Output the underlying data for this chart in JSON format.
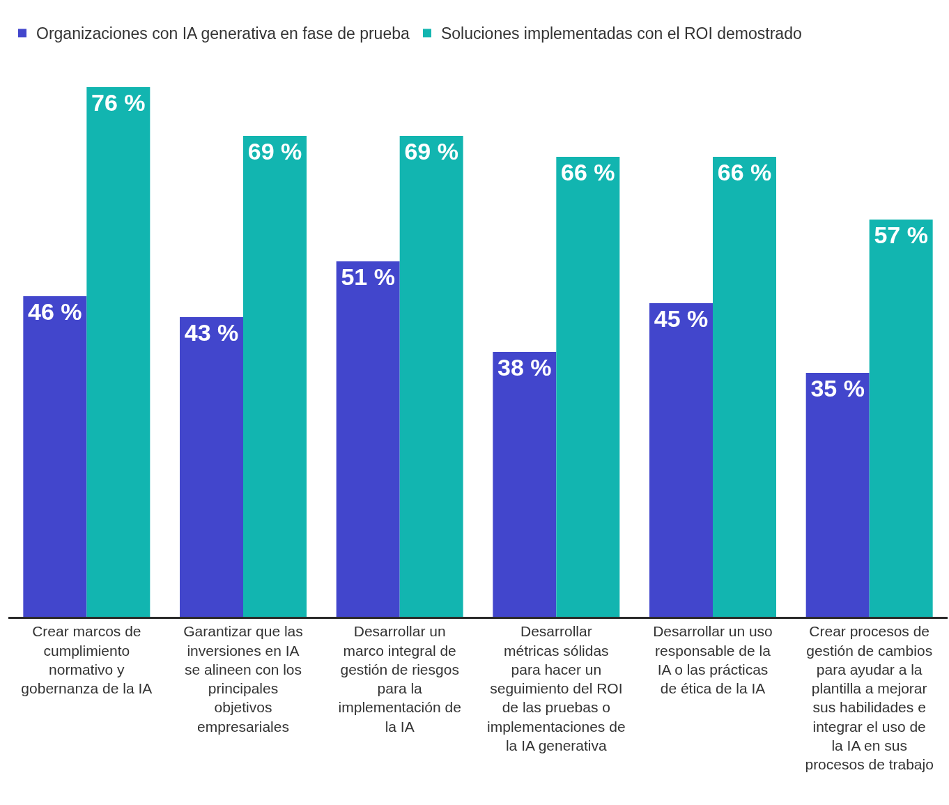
{
  "chart_data": {
    "type": "bar",
    "categories": [
      "Crear marcos de cumplimiento normativo y gobernanza de la IA",
      "Garantizar que las inversiones en IA se alineen con los principales objetivos empresariales",
      "Desarrollar un marco integral de gestión de riesgos para la implementación de la IA",
      "Desarrollar métricas sólidas para hacer un seguimiento del ROI de las pruebas o implementaciones de la IA generativa",
      "Desarrollar un uso responsable de la IA o las prácticas de ética de la IA",
      "Crear procesos de gestión de cambios para ayudar a la plantilla a mejorar sus habilidades e integrar el uso de la IA en sus procesos de trabajo"
    ],
    "series": [
      {
        "name": "Organizaciones con IA generativa en fase de prueba",
        "color": "#4246cc",
        "values": [
          46,
          43,
          51,
          38,
          45,
          35
        ],
        "value_labels": [
          "46 %",
          "43 %",
          "51 %",
          "38 %",
          "45 %",
          "35 %"
        ]
      },
      {
        "name": "Soluciones implementadas con el ROI demostrado",
        "color": "#12b5b0",
        "values": [
          76,
          69,
          69,
          66,
          66,
          57
        ],
        "value_labels": [
          "76 %",
          "69 %",
          "69 %",
          "66 %",
          "66 %",
          "57 %"
        ]
      }
    ],
    "legend": "top left"
  }
}
